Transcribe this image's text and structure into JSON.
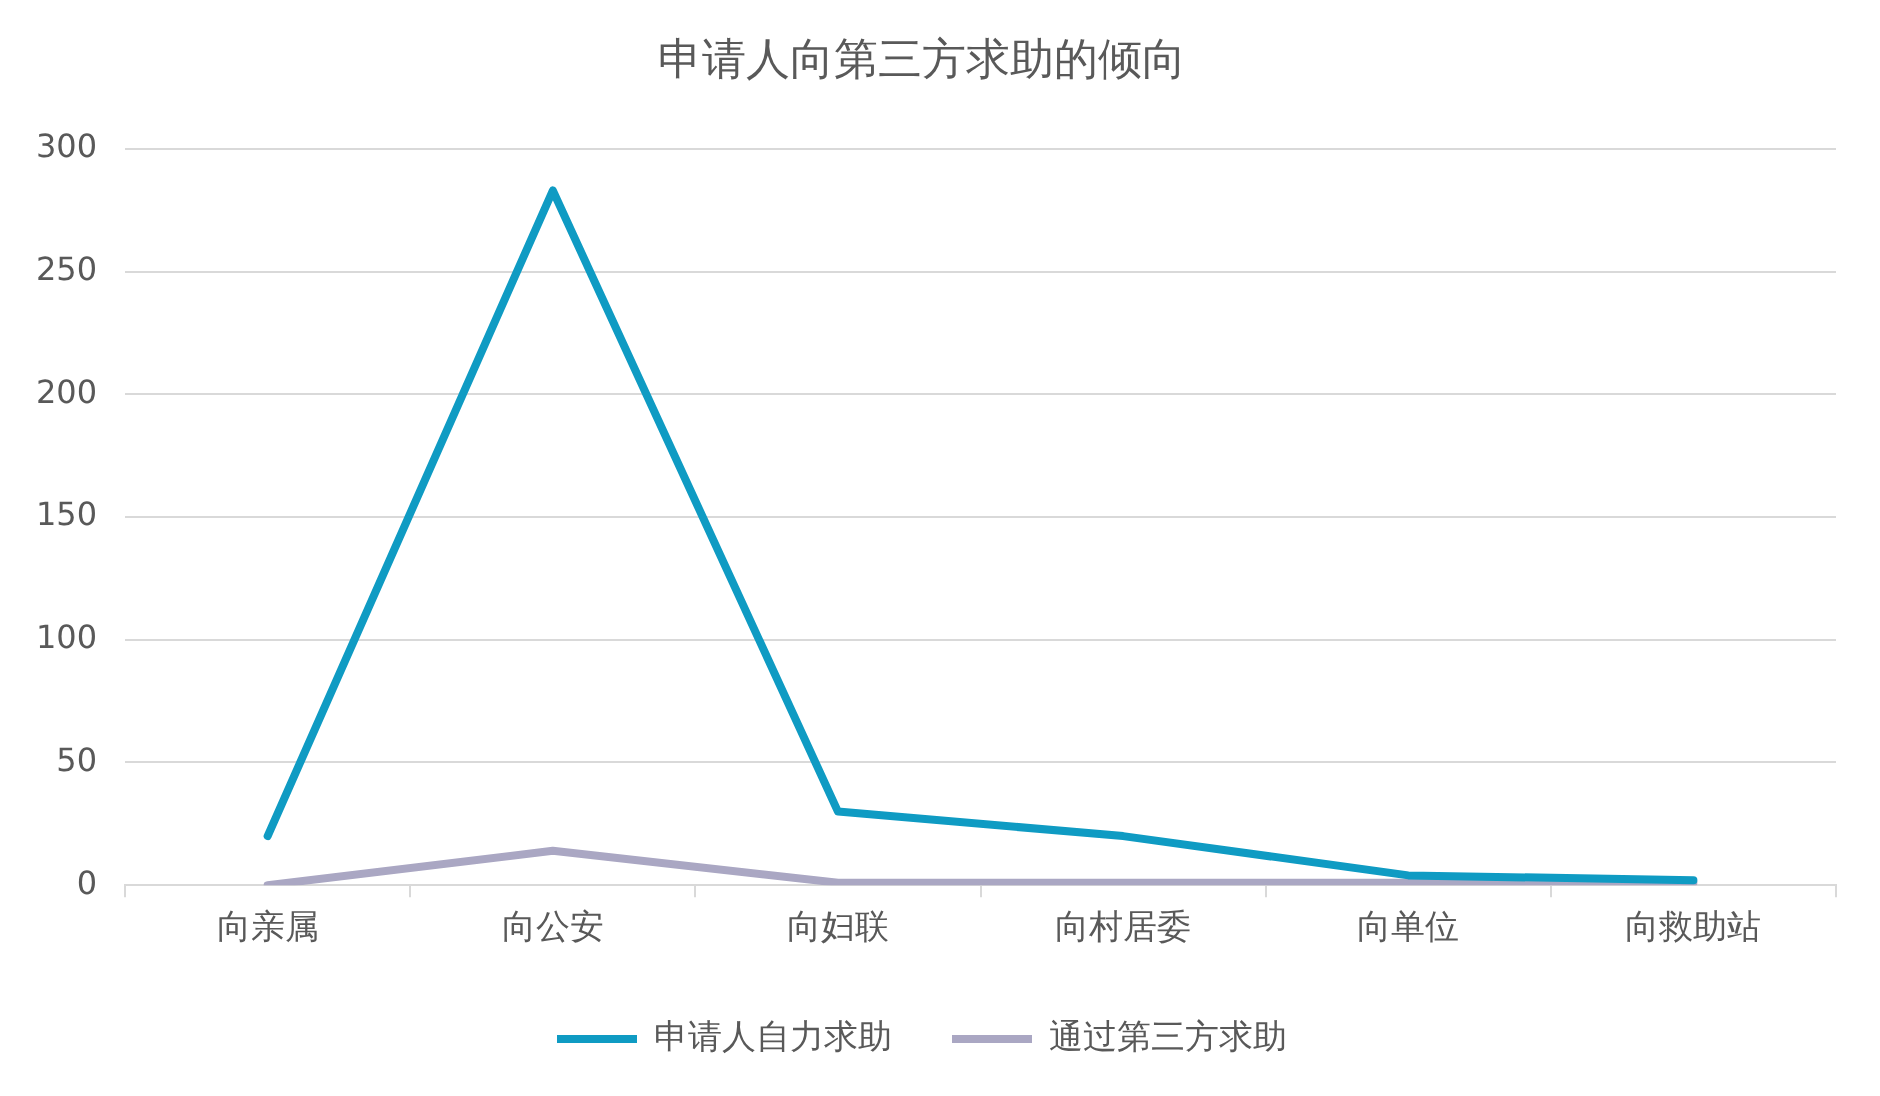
{
  "chart_data": {
    "type": "line",
    "title": "申请人向第三方求助的倾向",
    "categories": [
      "向亲属",
      "向公安",
      "向妇联",
      "向村居委",
      "向单位",
      "向救助站"
    ],
    "series": [
      {
        "name": "申请人自力求助",
        "color": "#0f9bc3",
        "values": [
          20,
          283,
          30,
          20,
          4,
          2
        ]
      },
      {
        "name": "通过第三方求助",
        "color": "#aaa7c3",
        "values": [
          0,
          14,
          1,
          1,
          1,
          1
        ]
      }
    ],
    "ylim": [
      0,
      300
    ],
    "yticks": [
      0,
      50,
      100,
      150,
      200,
      250,
      300
    ],
    "grid": "y",
    "legend": "bottom",
    "marker": "none"
  }
}
